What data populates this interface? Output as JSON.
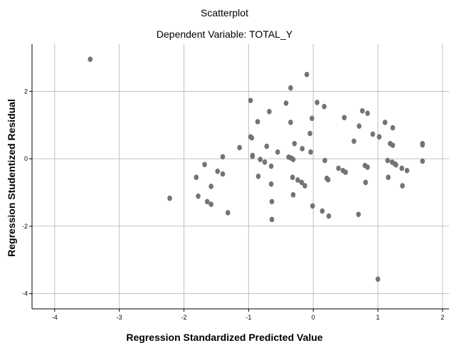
{
  "chart_data": {
    "type": "scatter",
    "title": "Scatterplot",
    "subtitle": "Dependent Variable: TOTAL_Y",
    "xlabel": "Regression Standardized Predicted Value",
    "ylabel": "Regression Studentized Residual",
    "xlim": [
      -4.35,
      2.1
    ],
    "ylim": [
      -4.45,
      3.4
    ],
    "xticks": [
      -4,
      -3,
      -2,
      -1,
      0,
      1,
      2
    ],
    "yticks": [
      -4,
      -2,
      0,
      2
    ],
    "grid": true,
    "point_color": "#737373",
    "grid_color": "#c0c0c0",
    "points": [
      {
        "x": -3.45,
        "y": 2.95
      },
      {
        "x": -2.22,
        "y": -1.17
      },
      {
        "x": -1.81,
        "y": -0.55
      },
      {
        "x": -1.78,
        "y": -1.11
      },
      {
        "x": -1.68,
        "y": -0.17
      },
      {
        "x": -1.64,
        "y": -1.27
      },
      {
        "x": -1.58,
        "y": -0.82
      },
      {
        "x": -1.58,
        "y": -1.35
      },
      {
        "x": -1.48,
        "y": -0.37
      },
      {
        "x": -1.4,
        "y": -0.45
      },
      {
        "x": -1.4,
        "y": 0.06
      },
      {
        "x": -1.32,
        "y": -1.6
      },
      {
        "x": -1.14,
        "y": 0.33
      },
      {
        "x": -0.97,
        "y": 1.73
      },
      {
        "x": -0.97,
        "y": 0.65
      },
      {
        "x": -0.95,
        "y": 0.62
      },
      {
        "x": -0.94,
        "y": 0.1
      },
      {
        "x": -0.94,
        "y": 0.07
      },
      {
        "x": -0.86,
        "y": 1.1
      },
      {
        "x": -0.85,
        "y": -0.52
      },
      {
        "x": -0.82,
        "y": -0.02
      },
      {
        "x": -0.75,
        "y": -0.1
      },
      {
        "x": -0.72,
        "y": 0.37
      },
      {
        "x": -0.68,
        "y": 1.4
      },
      {
        "x": -0.65,
        "y": -0.22
      },
      {
        "x": -0.65,
        "y": -0.75
      },
      {
        "x": -0.64,
        "y": -1.27
      },
      {
        "x": -0.64,
        "y": -1.8
      },
      {
        "x": -0.55,
        "y": 0.2
      },
      {
        "x": -0.42,
        "y": 1.65
      },
      {
        "x": -0.38,
        "y": 0.05
      },
      {
        "x": -0.35,
        "y": 2.1
      },
      {
        "x": -0.35,
        "y": 1.08
      },
      {
        "x": -0.34,
        "y": 0.02
      },
      {
        "x": -0.32,
        "y": -0.55
      },
      {
        "x": -0.31,
        "y": -0.02
      },
      {
        "x": -0.31,
        "y": -1.07
      },
      {
        "x": -0.29,
        "y": 0.45
      },
      {
        "x": -0.24,
        "y": -0.63
      },
      {
        "x": -0.18,
        "y": -0.7
      },
      {
        "x": -0.17,
        "y": 0.3
      },
      {
        "x": -0.13,
        "y": -0.8
      },
      {
        "x": -0.1,
        "y": 2.5
      },
      {
        "x": -0.05,
        "y": 0.75
      },
      {
        "x": -0.04,
        "y": 0.2
      },
      {
        "x": -0.02,
        "y": 1.2
      },
      {
        "x": -0.01,
        "y": -1.4
      },
      {
        "x": 0.06,
        "y": 1.67
      },
      {
        "x": 0.14,
        "y": -1.55
      },
      {
        "x": 0.17,
        "y": 1.55
      },
      {
        "x": 0.18,
        "y": -0.05
      },
      {
        "x": 0.21,
        "y": -0.58
      },
      {
        "x": 0.23,
        "y": -0.62
      },
      {
        "x": 0.24,
        "y": -1.7
      },
      {
        "x": 0.39,
        "y": -0.28
      },
      {
        "x": 0.46,
        "y": -0.35
      },
      {
        "x": 0.48,
        "y": 1.22
      },
      {
        "x": 0.5,
        "y": -0.4
      },
      {
        "x": 0.63,
        "y": 0.52
      },
      {
        "x": 0.7,
        "y": -1.65
      },
      {
        "x": 0.71,
        "y": 0.97
      },
      {
        "x": 0.76,
        "y": 1.42
      },
      {
        "x": 0.8,
        "y": -0.2
      },
      {
        "x": 0.81,
        "y": -0.7
      },
      {
        "x": 0.84,
        "y": -0.25
      },
      {
        "x": 0.84,
        "y": 1.35
      },
      {
        "x": 0.92,
        "y": 0.73
      },
      {
        "x": 1.0,
        "y": -3.57
      },
      {
        "x": 1.02,
        "y": 0.65
      },
      {
        "x": 1.11,
        "y": 1.08
      },
      {
        "x": 1.15,
        "y": -0.05
      },
      {
        "x": 1.16,
        "y": -0.55
      },
      {
        "x": 1.19,
        "y": 0.45
      },
      {
        "x": 1.22,
        "y": -0.1
      },
      {
        "x": 1.23,
        "y": 0.4
      },
      {
        "x": 1.23,
        "y": 0.92
      },
      {
        "x": 1.26,
        "y": -0.15
      },
      {
        "x": 1.28,
        "y": -0.18
      },
      {
        "x": 1.37,
        "y": -0.28
      },
      {
        "x": 1.38,
        "y": -0.8
      },
      {
        "x": 1.45,
        "y": -0.35
      },
      {
        "x": 1.69,
        "y": 0.45
      },
      {
        "x": 1.69,
        "y": 0.41
      },
      {
        "x": 1.69,
        "y": -0.07
      }
    ]
  }
}
